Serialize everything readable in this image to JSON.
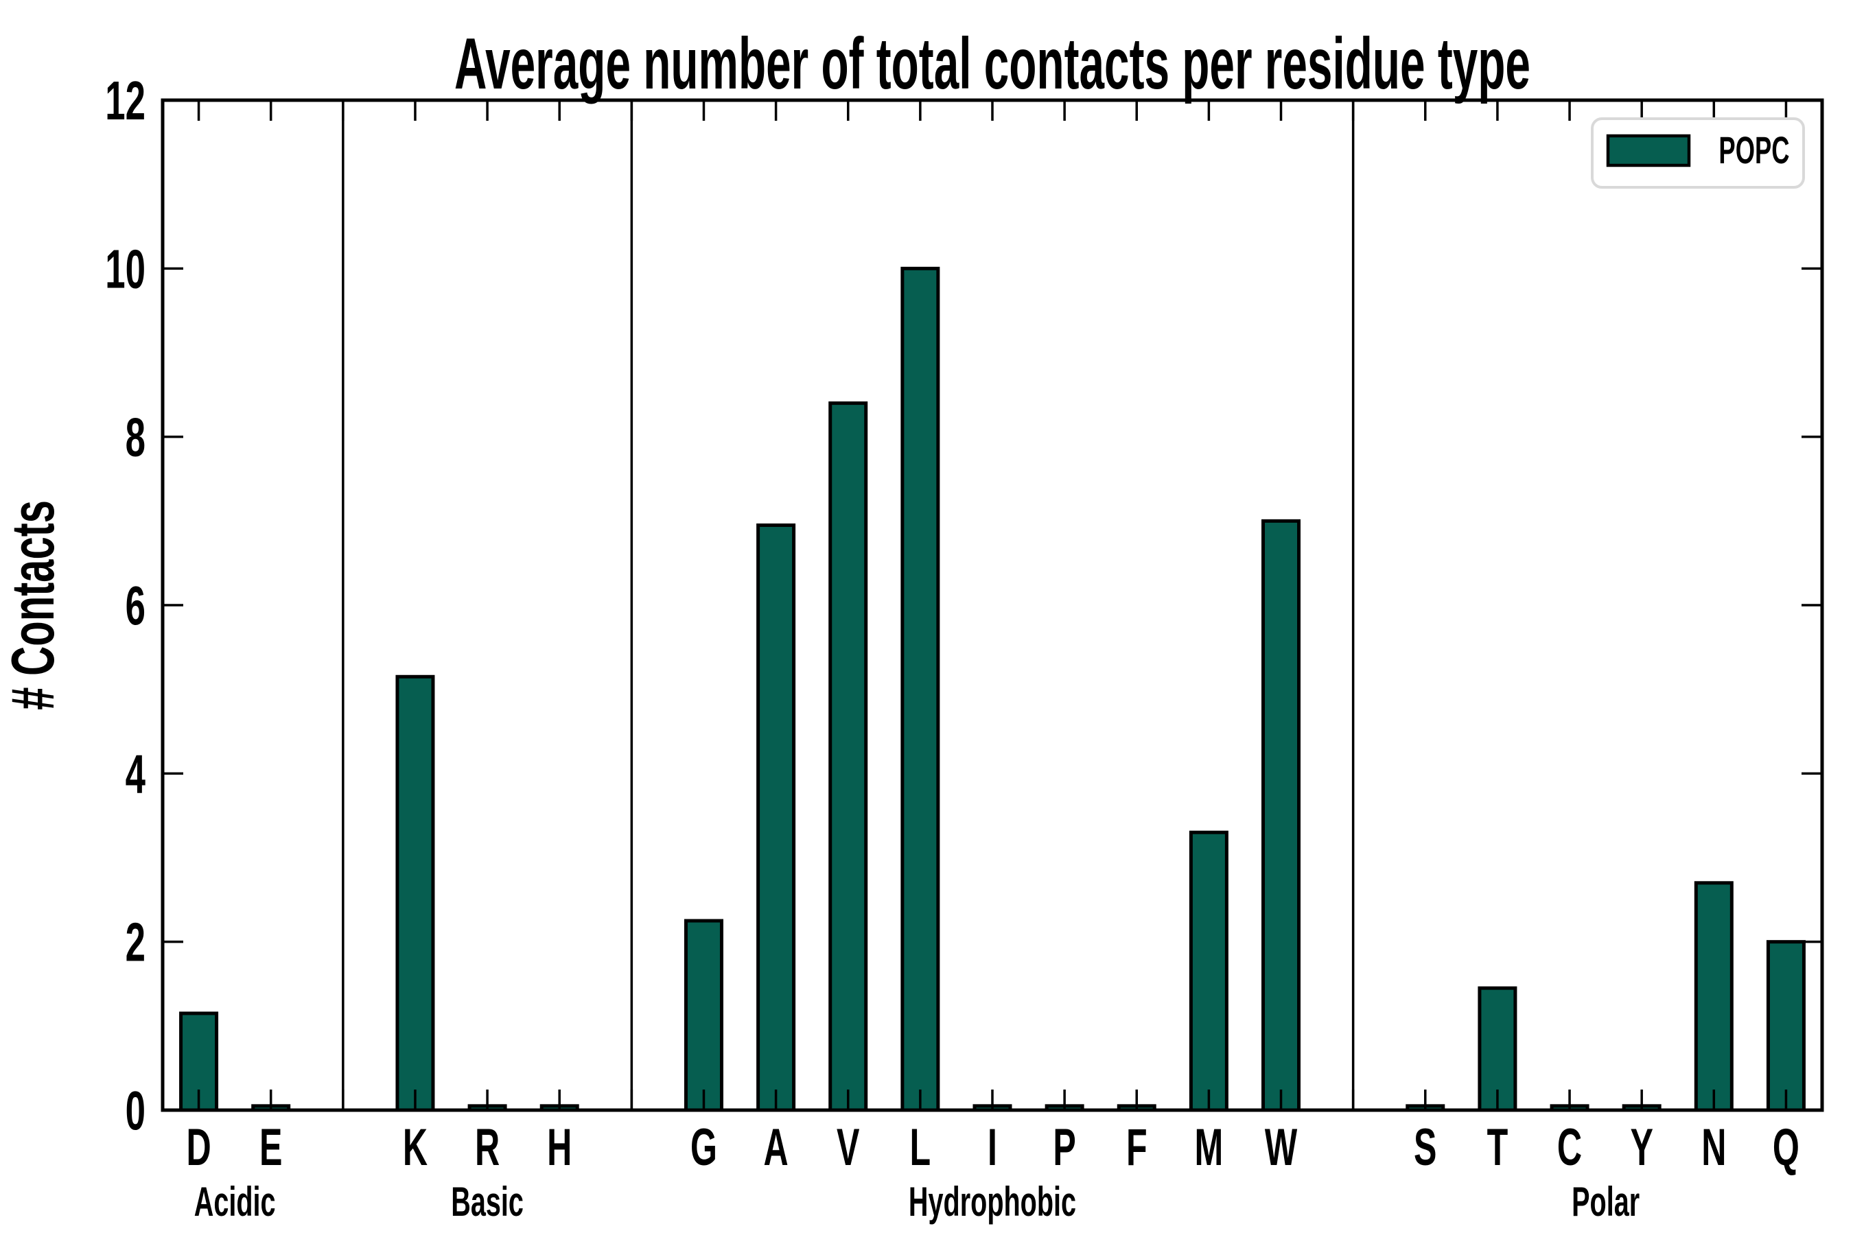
{
  "title": "Average number of total contacts per residue type",
  "legend": {
    "label": "POPC"
  },
  "axes": {
    "ylabel": "# Contacts",
    "ytick_labels": [
      "0",
      "2",
      "4",
      "6",
      "8",
      "10",
      "12"
    ]
  },
  "colors": {
    "bar_fill": "#065e50",
    "bar_edge": "#000000",
    "axis": "#000000",
    "legend_border": "#d9d9d9",
    "background": "#ffffff"
  },
  "chart_data": {
    "type": "bar",
    "title": "Average number of total contacts per residue type",
    "xlabel": "",
    "ylabel": "# Contacts",
    "ylim": [
      0,
      12
    ],
    "yticks": [
      0,
      2,
      4,
      6,
      8,
      10,
      12
    ],
    "grid": false,
    "legend_entries": [
      "POPC"
    ],
    "legend_position": "upper right",
    "series_name": "POPC",
    "groups": [
      {
        "label": "Acidic",
        "categories": [
          "D",
          "E"
        ],
        "values": [
          1.15,
          0.05
        ]
      },
      {
        "label": "Basic",
        "categories": [
          "K",
          "R",
          "H"
        ],
        "values": [
          5.15,
          0.05,
          0.05
        ]
      },
      {
        "label": "Hydrophobic",
        "categories": [
          "G",
          "A",
          "V",
          "L",
          "I",
          "P",
          "F",
          "M",
          "W"
        ],
        "values": [
          2.25,
          6.95,
          8.4,
          10.0,
          0.05,
          0.05,
          0.05,
          3.3,
          7.0
        ]
      },
      {
        "label": "Polar",
        "categories": [
          "S",
          "T",
          "C",
          "Y",
          "N",
          "Q"
        ],
        "values": [
          0.05,
          1.45,
          0.05,
          0.05,
          2.7,
          2.0
        ]
      }
    ],
    "group_separator_lines": true
  }
}
